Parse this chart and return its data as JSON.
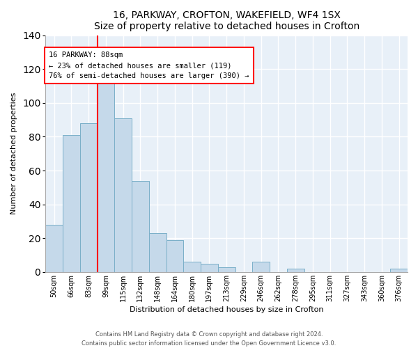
{
  "title": "16, PARKWAY, CROFTON, WAKEFIELD, WF4 1SX",
  "subtitle": "Size of property relative to detached houses in Crofton",
  "xlabel": "Distribution of detached houses by size in Crofton",
  "ylabel": "Number of detached properties",
  "bar_color": "#c5d9ea",
  "bar_edge_color": "#7aafc8",
  "categories": [
    "50sqm",
    "66sqm",
    "83sqm",
    "99sqm",
    "115sqm",
    "132sqm",
    "148sqm",
    "164sqm",
    "180sqm",
    "197sqm",
    "213sqm",
    "229sqm",
    "246sqm",
    "262sqm",
    "278sqm",
    "295sqm",
    "311sqm",
    "327sqm",
    "343sqm",
    "360sqm",
    "376sqm"
  ],
  "values": [
    28,
    81,
    88,
    113,
    91,
    54,
    23,
    19,
    6,
    5,
    3,
    0,
    6,
    0,
    2,
    0,
    0,
    0,
    0,
    0,
    2
  ],
  "ylim": [
    0,
    140
  ],
  "yticks": [
    0,
    20,
    40,
    60,
    80,
    100,
    120,
    140
  ],
  "red_line_bin_index": 2,
  "annotation_box_text_line1": "16 PARKWAY: 88sqm",
  "annotation_box_text_line2": "← 23% of detached houses are smaller (119)",
  "annotation_box_text_line3": "76% of semi-detached houses are larger (390) →",
  "footer1": "Contains HM Land Registry data © Crown copyright and database right 2024.",
  "footer2": "Contains public sector information licensed under the Open Government Licence v3.0.",
  "bg_color": "#ffffff",
  "plot_bg_color": "#e8f0f8",
  "grid_color": "#ffffff",
  "title_fontsize": 10,
  "subtitle_fontsize": 9,
  "axis_label_fontsize": 8,
  "tick_fontsize": 7,
  "annotation_fontsize": 7.5,
  "footer_fontsize": 6
}
